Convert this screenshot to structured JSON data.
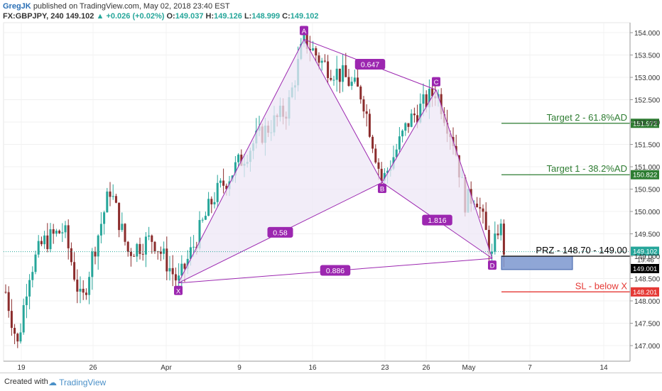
{
  "header": {
    "author": "GregJK",
    "published": "published on TradingView.com, May 02, 2018 23:40 EST",
    "symbol": "FX:GBPJPY, 240",
    "last": "149.102",
    "change": "+0.026 (+0.02%)",
    "o_label": "O:",
    "o": "149.037",
    "h_label": "H:",
    "h": "149.126",
    "l_label": "L:",
    "l": "148.999",
    "c_label": "C:",
    "c": "149.102"
  },
  "footer": {
    "created": "Created with",
    "brand": "TradingView"
  },
  "colors": {
    "up": "#26a69a",
    "down": "#8b2c2c",
    "pattern": "#9c27b0",
    "pattern_fill": "#ede7f6",
    "target": "#2e7d32",
    "sl": "#e53935",
    "prz_box": "#7b96cf"
  },
  "chart_data": {
    "type": "candlestick",
    "symbol": "GBPJPY",
    "interval": "240",
    "ylim": [
      146.7,
      154.25
    ],
    "y_ticks": [
      "154.000",
      "153.500",
      "153.000",
      "152.500",
      "152.000",
      "151.500",
      "151.000",
      "150.500",
      "150.000",
      "149.500",
      "149.000",
      "148.500",
      "148.000",
      "147.500",
      "147.000"
    ],
    "x_ticks": [
      "19",
      "26",
      "Apr",
      "9",
      "16",
      "23",
      "26",
      "May",
      "7",
      "14"
    ],
    "pattern": {
      "points": [
        {
          "label": "X",
          "price": 148.4
        },
        {
          "label": "A",
          "price": 153.85
        },
        {
          "label": "B",
          "price": 150.65
        },
        {
          "label": "C",
          "price": 152.72
        },
        {
          "label": "D",
          "price": 148.95
        }
      ],
      "ratios": [
        {
          "from": "X",
          "to": "B",
          "label": "0.58"
        },
        {
          "from": "A",
          "to": "C",
          "label": "0.647"
        },
        {
          "from": "B",
          "to": "D",
          "label": "1.816"
        },
        {
          "from": "X",
          "to": "D",
          "label": "0.886"
        }
      ]
    },
    "levels": [
      {
        "name": "Target 2",
        "label": "Target 2 - 61.8%AD",
        "price": 151.972,
        "price_label": "151.972"
      },
      {
        "name": "Target 1",
        "label": "Target 1 - 38.2%AD",
        "price": 150.822,
        "price_label": "150.822"
      },
      {
        "name": "PRZ",
        "label": "PRZ - 148.70 - 149.00",
        "price": 149.0
      },
      {
        "name": "SL",
        "label": "SL - below X",
        "price": 148.201,
        "price_label": "148.201"
      }
    ],
    "price_tags": {
      "current": "149.102",
      "countdown": "19:46",
      "prz": "149.001"
    },
    "prz_zone": [
      148.7,
      149.0
    ]
  }
}
